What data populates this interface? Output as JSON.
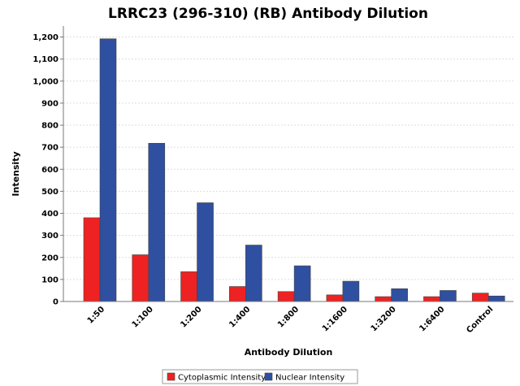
{
  "chart_data": {
    "type": "bar",
    "title": "LRRC23 (296-310) (RB) Antibody Dilution",
    "xlabel": "Antibody Dilution",
    "ylabel": "Intensity",
    "categories": [
      "1:50",
      "1:100",
      "1:200",
      "1:400",
      "1:800",
      "1:1600",
      "1:3200",
      "1:6400",
      "Control"
    ],
    "series": [
      {
        "name": "Cytoplasmic Intensity",
        "color": "#ee2222",
        "values": [
          380,
          212,
          135,
          68,
          45,
          30,
          22,
          22,
          38
        ]
      },
      {
        "name": "Nuclear Intensity",
        "color": "#2f4fa0",
        "values": [
          1192,
          718,
          448,
          256,
          162,
          92,
          58,
          50,
          25
        ]
      }
    ],
    "ylim": [
      0,
      1250
    ],
    "yticks": [
      0,
      100,
      200,
      300,
      400,
      500,
      600,
      700,
      800,
      900,
      1000,
      1100,
      1200
    ],
    "ytick_labels": [
      "0",
      "100",
      "200",
      "300",
      "400",
      "500",
      "600",
      "700",
      "800",
      "900",
      "1,000",
      "1,100",
      "1,200"
    ],
    "grid": true,
    "legend": "bottom-center"
  }
}
